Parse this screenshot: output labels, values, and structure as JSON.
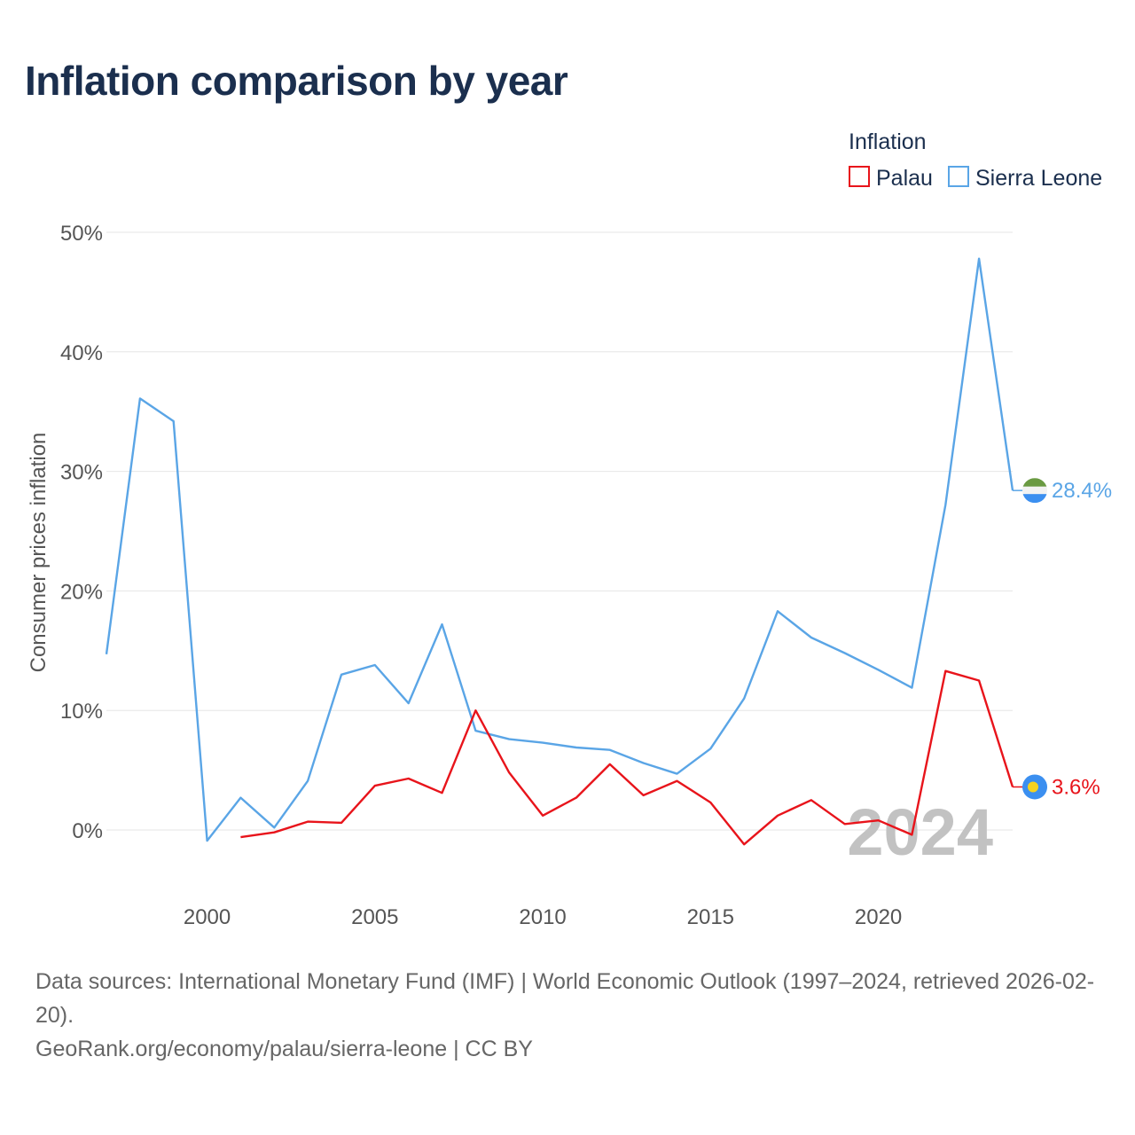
{
  "title": "Inflation comparison by year",
  "legend": {
    "title": "Inflation"
  },
  "footer": {
    "sources": "Data sources: International Monetary Fund (IMF) | World Economic Outlook (1997–2024, retrieved 2026-02-20).",
    "credit": "GeoRank.org/economy/palau/sierra-leone | CC BY"
  },
  "chart_data": {
    "type": "line",
    "title": "Inflation comparison by year",
    "ylabel": "Consumer prices inflation",
    "xlabel": "",
    "xlim": [
      1997,
      2024
    ],
    "ylim": [
      -5,
      52
    ],
    "x_ticks": [
      2000,
      2005,
      2010,
      2015,
      2020
    ],
    "x_tick_labels": [
      "2000",
      "2005",
      "2010",
      "2015",
      "2020"
    ],
    "y_ticks": [
      0,
      10,
      20,
      30,
      40,
      50
    ],
    "y_tick_labels": [
      "0%",
      "10%",
      "20%",
      "30%",
      "40%",
      "50%"
    ],
    "grid": true,
    "legend_position": "top-right",
    "watermark_year": "2024",
    "series": [
      {
        "name": "Palau",
        "color": "#e8141b",
        "end_label": "3.6%",
        "flag_icon": "palau-flag-icon",
        "x": [
          2001,
          2002,
          2003,
          2004,
          2005,
          2006,
          2007,
          2008,
          2009,
          2010,
          2011,
          2012,
          2013,
          2014,
          2015,
          2016,
          2017,
          2018,
          2019,
          2020,
          2021,
          2022,
          2023,
          2024
        ],
        "values": [
          -0.6,
          -0.2,
          0.7,
          0.6,
          3.7,
          4.3,
          3.1,
          10.0,
          4.8,
          1.2,
          2.7,
          5.5,
          2.9,
          4.1,
          2.3,
          -1.2,
          1.2,
          2.5,
          0.5,
          0.8,
          -0.4,
          13.3,
          12.5,
          3.6
        ]
      },
      {
        "name": "Sierra Leone",
        "color": "#5aa5e6",
        "end_label": "28.4%",
        "flag_icon": "sierra-leone-flag-icon",
        "x": [
          1997,
          1998,
          1999,
          2000,
          2001,
          2002,
          2003,
          2004,
          2005,
          2006,
          2007,
          2008,
          2009,
          2010,
          2011,
          2012,
          2013,
          2014,
          2015,
          2016,
          2017,
          2018,
          2019,
          2020,
          2021,
          2022,
          2023,
          2024
        ],
        "values": [
          14.7,
          36.1,
          34.2,
          -0.9,
          2.7,
          0.2,
          4.1,
          13.0,
          13.8,
          10.6,
          17.2,
          8.3,
          7.6,
          7.3,
          6.9,
          6.7,
          5.6,
          4.7,
          6.8,
          11.0,
          18.3,
          16.1,
          14.8,
          13.4,
          11.9,
          27.2,
          47.8,
          28.4
        ]
      }
    ]
  }
}
